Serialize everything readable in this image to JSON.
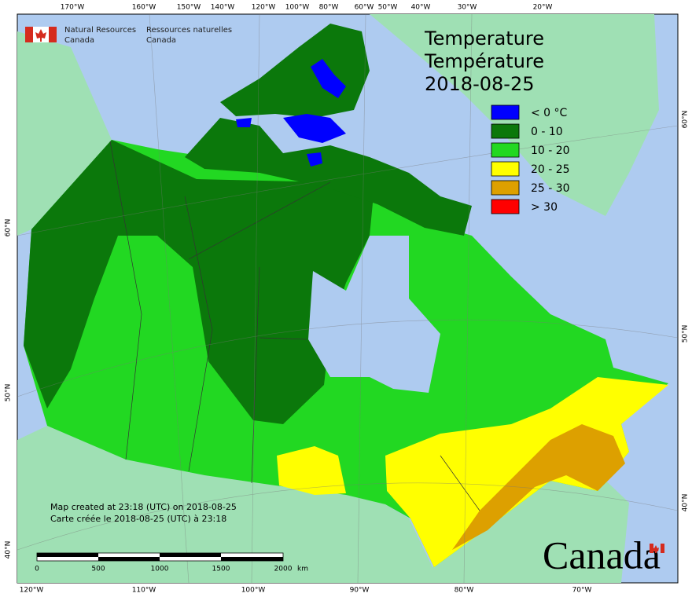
{
  "header": {
    "agency_en": [
      "Natural Resources",
      "Canada"
    ],
    "agency_fr": [
      "Ressources naturelles",
      "Canada"
    ]
  },
  "title": {
    "en": "Temperature",
    "fr": "Température",
    "date": "2018-08-25"
  },
  "legend": [
    {
      "label": "< 0 °C",
      "color": "#0000ff"
    },
    {
      "label": "0 - 10",
      "color": "#0b780b"
    },
    {
      "label": "10 - 20",
      "color": "#22d822"
    },
    {
      "label": "20 - 25",
      "color": "#ffff00"
    },
    {
      "label": "25 - 30",
      "color": "#dda000"
    },
    {
      "label": "> 30",
      "color": "#ff0000"
    }
  ],
  "graticule": {
    "top": [
      "170°W",
      "160°W",
      "150°W",
      "140°W",
      "120°W",
      "100°W",
      "80°W",
      "60°W",
      "50°W",
      "40°W",
      "30°W",
      "20°W"
    ],
    "bottom": [
      "120°W",
      "110°W",
      "100°W",
      "90°W",
      "80°W",
      "70°W"
    ],
    "left": [
      "60°N",
      "50°N",
      "40°N"
    ],
    "right": [
      "60°N",
      "50°N",
      "40°N"
    ]
  },
  "notes": [
    "Map created at 23:18 (UTC) on 2018-08-25",
    "Carte créée le 2018-08-25 (UTC) à 23:18"
  ],
  "scale_bar": {
    "labels": [
      "0",
      "500",
      "1000",
      "1500",
      "2000"
    ],
    "unit": "km"
  },
  "wordmark": "Canada"
}
